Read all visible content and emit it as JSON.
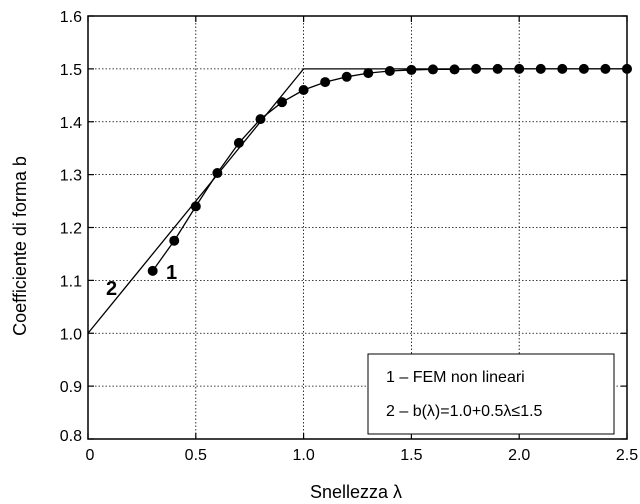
{
  "chart_data": {
    "type": "line",
    "title": "",
    "xlabel": "Snellezza λ",
    "ylabel": "Coefficiente di forma b",
    "xlim": [
      0,
      2.5
    ],
    "ylim": [
      0.8,
      1.6
    ],
    "x_ticks": [
      "0",
      "0.5",
      "1.0",
      "1.5",
      "2.0",
      "2.5"
    ],
    "y_ticks": [
      "0.8",
      "0.9",
      "1.0",
      "1.1",
      "1.2",
      "1.3",
      "1.4",
      "1.5",
      "1.6"
    ],
    "x_tick_values": [
      0,
      0.5,
      1.0,
      1.5,
      2.0,
      2.5
    ],
    "y_tick_values": [
      0.8,
      0.9,
      1.0,
      1.1,
      1.2,
      1.3,
      1.4,
      1.5,
      1.6
    ],
    "grid": true,
    "legend_position": "bottom-right",
    "series": [
      {
        "name": "1 – FEM non lineari",
        "marker": "circle",
        "curve_label": "1",
        "x": [
          0.3,
          0.4,
          0.5,
          0.6,
          0.7,
          0.8,
          0.9,
          1.0,
          1.1,
          1.2,
          1.3,
          1.4,
          1.5,
          1.6,
          1.7,
          1.8,
          1.9,
          2.0,
          2.1,
          2.2,
          2.3,
          2.4,
          2.5
        ],
        "y": [
          1.118,
          1.175,
          1.24,
          1.303,
          1.36,
          1.405,
          1.437,
          1.46,
          1.475,
          1.485,
          1.492,
          1.496,
          1.498,
          1.499,
          1.499,
          1.5,
          1.5,
          1.5,
          1.5,
          1.5,
          1.5,
          1.5,
          1.5
        ]
      },
      {
        "name": "2 – b(λ)=1.0+0.5λ≤1.5",
        "marker": "none",
        "curve_label": "2",
        "x": [
          0,
          1.0,
          2.5
        ],
        "y": [
          1.0,
          1.5,
          1.5
        ]
      }
    ],
    "colors": {
      "line": "#000000",
      "grid": "#000000",
      "background": "#ffffff"
    }
  }
}
